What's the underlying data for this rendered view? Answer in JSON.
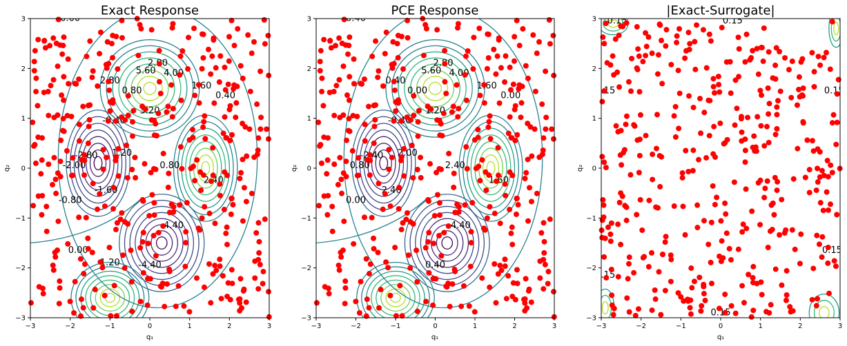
{
  "chart_data": [
    {
      "type": "contour",
      "title": "Exact Response",
      "xlabel": "q₁",
      "ylabel": "q₂",
      "xlim": [
        -3,
        3
      ],
      "ylim": [
        -3,
        3
      ],
      "xticks": [
        "−3",
        "−2",
        "−1",
        "0",
        "1",
        "2",
        "3"
      ],
      "yticks": [
        "−3",
        "−2",
        "−1",
        "0",
        "1",
        "2",
        "3"
      ],
      "grid": false,
      "colormap": "viridis",
      "contour_labels": [
        "0.00",
        "2.00",
        "5.60",
        "4.00",
        "1.60",
        "2.80",
        "0.80",
        "0.40",
        "-0.40",
        "-2.80",
        "-2.00",
        "1.20",
        "0.80",
        "2.40",
        "3.20",
        "-1.60",
        "-0.80",
        "4.40",
        "-4.40",
        "1.20",
        "0.00"
      ]
    },
    {
      "type": "contour",
      "title": "PCE Response",
      "xlabel": "q₁",
      "ylabel": "q₂",
      "xlim": [
        -3,
        3
      ],
      "ylim": [
        -3,
        3
      ],
      "xticks": [
        "−3",
        "−2",
        "−1",
        "0",
        "1",
        "2",
        "3"
      ],
      "yticks": [
        "−3",
        "−2",
        "−1",
        "0",
        "1",
        "2",
        "3"
      ],
      "grid": false,
      "colormap": "viridis",
      "contour_labels": [
        "0.40",
        "2.80",
        "5.60",
        "4.00",
        "1.60",
        "0.40",
        "0.00",
        "0.00",
        "-0.40",
        "-2.40",
        "0.80",
        "2.00",
        "2.40",
        "1.60",
        "1.20",
        "2.40",
        "0.00",
        "-4.40",
        "0.40"
      ]
    },
    {
      "type": "contour",
      "title": "|Exact-Surrogate|",
      "xlabel": "q₁",
      "ylabel": "q₂",
      "xlim": [
        -3,
        3
      ],
      "ylim": [
        -3,
        3
      ],
      "xticks": [
        "−3",
        "−2",
        "−1",
        "0",
        "1",
        "2",
        "3"
      ],
      "yticks": [
        "−3",
        "−2",
        "−1",
        "0",
        "1",
        "2",
        "3"
      ],
      "grid": false,
      "colormap": "viridis",
      "contour_labels": [
        "0.15",
        "0.15",
        "0.15",
        "0.15",
        "0.15",
        "0.15",
        "0.15"
      ]
    }
  ],
  "samples": {
    "color": "#ff0000",
    "marker": "circle",
    "count_per_panel": 400
  },
  "colors": {
    "axis": "#000000",
    "background": "#ffffff"
  }
}
